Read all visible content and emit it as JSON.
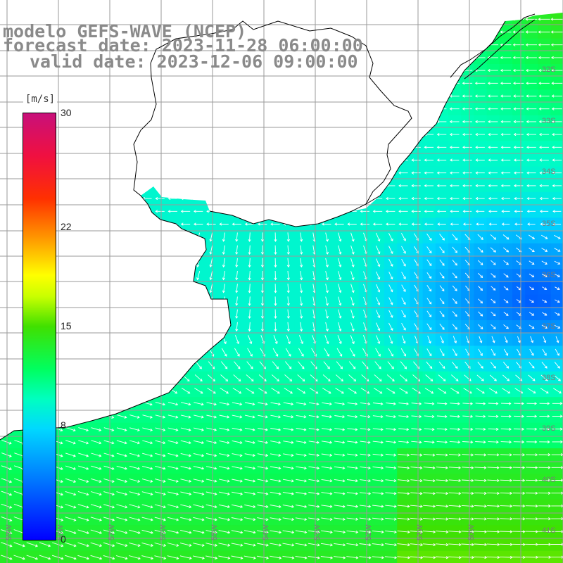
{
  "title": {
    "line1": "modelo GEFS-WAVE (NCEP)",
    "line2": "forecast date: 2023-11-28 06:00:00",
    "line3": "valid date: 2023-12-06 09:00:00"
  },
  "colorbar": {
    "unit": "[m/s]",
    "ticks": [
      {
        "value": 30,
        "label": "30"
      },
      {
        "value": 22,
        "label": "22"
      },
      {
        "value": 15,
        "label": "15"
      },
      {
        "value": 8,
        "label": "8"
      },
      {
        "value": 0,
        "label": "0"
      }
    ]
  },
  "map": {
    "field": "10 m wind speed",
    "lat_labels": [
      "32S",
      "33S",
      "34S",
      "35S",
      "36S",
      "37S",
      "38S",
      "39S",
      "40S",
      "41S"
    ],
    "lon_labels": [
      "59W",
      "58W",
      "57W",
      "56W",
      "55W",
      "54W",
      "53W",
      "52W",
      "51W",
      "50W"
    ],
    "colors": {
      "land": "#ffffff",
      "coast": "#000000",
      "grid": "#9a9a9a",
      "arrows": "#ffffff"
    }
  }
}
